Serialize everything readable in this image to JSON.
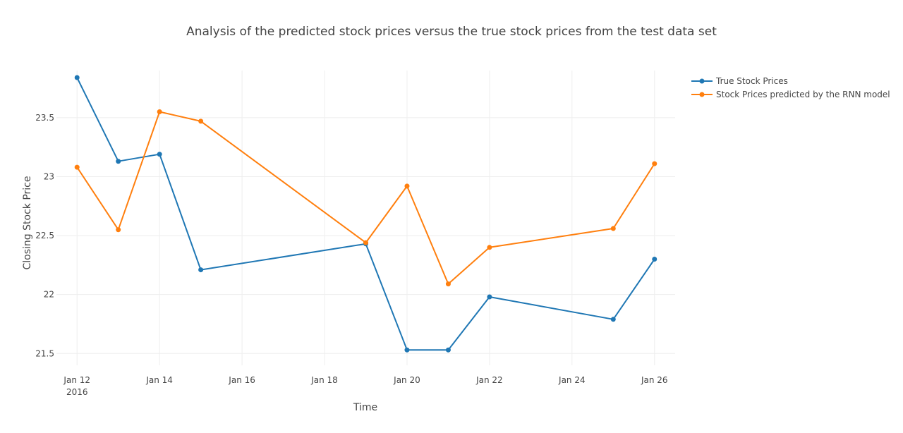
{
  "chart_data": {
    "type": "line",
    "title": "Analysis of the predicted stock prices versus the true stock prices from the test data set",
    "xlabel": "Time",
    "ylabel": "Closing Stock Price",
    "x_axis": {
      "type": "date",
      "range": [
        "2016-01-11T12:00",
        "2016-01-26T12:00"
      ],
      "ticks": [
        {
          "date": "2016-01-12",
          "label": "Jan 12",
          "sublabel": "2016"
        },
        {
          "date": "2016-01-14",
          "label": "Jan 14"
        },
        {
          "date": "2016-01-16",
          "label": "Jan 16"
        },
        {
          "date": "2016-01-18",
          "label": "Jan 18"
        },
        {
          "date": "2016-01-20",
          "label": "Jan 20"
        },
        {
          "date": "2016-01-22",
          "label": "Jan 22"
        },
        {
          "date": "2016-01-24",
          "label": "Jan 24"
        },
        {
          "date": "2016-01-26",
          "label": "Jan 26"
        }
      ]
    },
    "y_axis": {
      "range": [
        21.4,
        23.9
      ],
      "ticks": [
        21.5,
        22,
        22.5,
        23,
        23.5
      ],
      "tick_labels": [
        "21.5",
        "22",
        "22.5",
        "23",
        "23.5"
      ]
    },
    "grid": true,
    "legend_position": "top-right",
    "series": [
      {
        "name": "True Stock Prices",
        "color": "#1f77b4",
        "x": [
          "2016-01-12",
          "2016-01-13",
          "2016-01-14",
          "2016-01-15",
          "2016-01-19",
          "2016-01-20",
          "2016-01-21",
          "2016-01-22",
          "2016-01-25",
          "2016-01-26"
        ],
        "y": [
          23.84,
          23.13,
          23.19,
          22.21,
          22.43,
          21.53,
          21.53,
          21.98,
          21.79,
          22.3
        ]
      },
      {
        "name": "Stock Prices predicted by the RNN model",
        "color": "#ff7f0e",
        "x": [
          "2016-01-12",
          "2016-01-13",
          "2016-01-14",
          "2016-01-15",
          "2016-01-19",
          "2016-01-20",
          "2016-01-21",
          "2016-01-22",
          "2016-01-25",
          "2016-01-26"
        ],
        "y": [
          23.08,
          22.55,
          23.55,
          23.47,
          22.44,
          22.92,
          22.09,
          22.4,
          22.56,
          23.11
        ]
      }
    ]
  }
}
